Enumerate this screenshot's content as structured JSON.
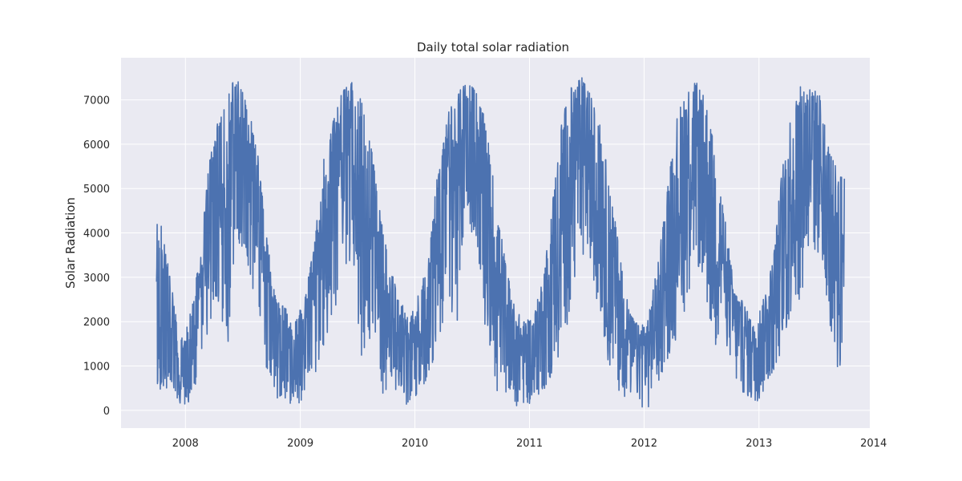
{
  "chart_data": {
    "type": "line",
    "title": "Daily total solar radiation",
    "xlabel": "",
    "ylabel": "Solar Radiation",
    "x_type": "date",
    "xlim": [
      "2007-06-10",
      "2013-12-20"
    ],
    "ylim": [
      -400,
      7950
    ],
    "x_ticks": [
      {
        "label": "2008",
        "date": "2008-01-01"
      },
      {
        "label": "2009",
        "date": "2009-01-01"
      },
      {
        "label": "2010",
        "date": "2010-01-01"
      },
      {
        "label": "2011",
        "date": "2011-01-01"
      },
      {
        "label": "2012",
        "date": "2012-01-01"
      },
      {
        "label": "2013",
        "date": "2013-01-01"
      },
      {
        "label": "2014",
        "date": "2014-01-01"
      }
    ],
    "y_ticks": [
      0,
      1000,
      2000,
      3000,
      4000,
      5000,
      6000,
      7000
    ],
    "grid": true,
    "legend": "none",
    "colors": {
      "background": "#eaeaf2",
      "grid": "#ffffff",
      "line": "#4c72b0"
    },
    "date_range": [
      "2007-10-01",
      "2013-09-30"
    ],
    "series": [
      {
        "values_by_month": [
          {
            "month": "2007-10",
            "lo": 350,
            "hi": 4200
          },
          {
            "month": "2007-11",
            "lo": 300,
            "hi": 3000
          },
          {
            "month": "2007-12",
            "lo": 100,
            "hi": 1500
          },
          {
            "month": "2008-01",
            "lo": 150,
            "hi": 2200
          },
          {
            "month": "2008-02",
            "lo": 900,
            "hi": 3400
          },
          {
            "month": "2008-03",
            "lo": 1500,
            "hi": 5500
          },
          {
            "month": "2008-04",
            "lo": 2300,
            "hi": 6600
          },
          {
            "month": "2008-05",
            "lo": 1400,
            "hi": 7200
          },
          {
            "month": "2008-06",
            "lo": 3800,
            "hi": 7550
          },
          {
            "month": "2008-07",
            "lo": 3300,
            "hi": 7000
          },
          {
            "month": "2008-08",
            "lo": 2300,
            "hi": 6000
          },
          {
            "month": "2008-09",
            "lo": 900,
            "hi": 4000
          },
          {
            "month": "2008-10",
            "lo": 250,
            "hi": 2500
          },
          {
            "month": "2008-11",
            "lo": 200,
            "hi": 2300
          },
          {
            "month": "2008-12",
            "lo": 100,
            "hi": 2000
          },
          {
            "month": "2009-01",
            "lo": 200,
            "hi": 2500
          },
          {
            "month": "2009-02",
            "lo": 800,
            "hi": 3800
          },
          {
            "month": "2009-03",
            "lo": 1300,
            "hi": 5600
          },
          {
            "month": "2009-04",
            "lo": 2000,
            "hi": 6500
          },
          {
            "month": "2009-05",
            "lo": 3000,
            "hi": 7200
          },
          {
            "month": "2009-06",
            "lo": 3300,
            "hi": 7400
          },
          {
            "month": "2009-07",
            "lo": 1200,
            "hi": 7000
          },
          {
            "month": "2009-08",
            "lo": 1600,
            "hi": 6000
          },
          {
            "month": "2009-09",
            "lo": 300,
            "hi": 4300
          },
          {
            "month": "2009-10",
            "lo": 600,
            "hi": 3200
          },
          {
            "month": "2009-11",
            "lo": 200,
            "hi": 2500
          },
          {
            "month": "2009-12",
            "lo": 100,
            "hi": 2000
          },
          {
            "month": "2010-01",
            "lo": 400,
            "hi": 2700
          },
          {
            "month": "2010-02",
            "lo": 800,
            "hi": 3500
          },
          {
            "month": "2010-03",
            "lo": 1500,
            "hi": 5500
          },
          {
            "month": "2010-04",
            "lo": 2200,
            "hi": 6700
          },
          {
            "month": "2010-05",
            "lo": 1900,
            "hi": 7100
          },
          {
            "month": "2010-06",
            "lo": 4500,
            "hi": 7450
          },
          {
            "month": "2010-07",
            "lo": 3600,
            "hi": 7200
          },
          {
            "month": "2010-08",
            "lo": 1700,
            "hi": 6500
          },
          {
            "month": "2010-09",
            "lo": 400,
            "hi": 4800
          },
          {
            "month": "2010-10",
            "lo": 400,
            "hi": 3400
          },
          {
            "month": "2010-11",
            "lo": 100,
            "hi": 2300
          },
          {
            "month": "2010-12",
            "lo": 50,
            "hi": 2000
          },
          {
            "month": "2011-01",
            "lo": 100,
            "hi": 2100
          },
          {
            "month": "2011-02",
            "lo": 400,
            "hi": 3100
          },
          {
            "month": "2011-03",
            "lo": 700,
            "hi": 4700
          },
          {
            "month": "2011-04",
            "lo": 1300,
            "hi": 6600
          },
          {
            "month": "2011-05",
            "lo": 2300,
            "hi": 7300
          },
          {
            "month": "2011-06",
            "lo": 3600,
            "hi": 7530
          },
          {
            "month": "2011-07",
            "lo": 3200,
            "hi": 7100
          },
          {
            "month": "2011-08",
            "lo": 2000,
            "hi": 6400
          },
          {
            "month": "2011-09",
            "lo": 700,
            "hi": 5000
          },
          {
            "month": "2011-10",
            "lo": 400,
            "hi": 3600
          },
          {
            "month": "2011-11",
            "lo": 200,
            "hi": 2200
          },
          {
            "month": "2011-12",
            "lo": 100,
            "hi": 1900
          },
          {
            "month": "2012-01",
            "lo": 0,
            "hi": 2100
          },
          {
            "month": "2012-02",
            "lo": 600,
            "hi": 3400
          },
          {
            "month": "2012-03",
            "lo": 1100,
            "hi": 5000
          },
          {
            "month": "2012-04",
            "lo": 1600,
            "hi": 6600
          },
          {
            "month": "2012-05",
            "lo": 2300,
            "hi": 7300
          },
          {
            "month": "2012-06",
            "lo": 3300,
            "hi": 7400
          },
          {
            "month": "2012-07",
            "lo": 2300,
            "hi": 7000
          },
          {
            "month": "2012-08",
            "lo": 900,
            "hi": 5800
          },
          {
            "month": "2012-09",
            "lo": 1600,
            "hi": 4300
          },
          {
            "month": "2012-10",
            "lo": 500,
            "hi": 2700
          },
          {
            "month": "2012-11",
            "lo": 300,
            "hi": 2400
          },
          {
            "month": "2012-12",
            "lo": 100,
            "hi": 1900
          },
          {
            "month": "2013-01",
            "lo": 300,
            "hi": 2500
          },
          {
            "month": "2013-02",
            "lo": 800,
            "hi": 3400
          },
          {
            "month": "2013-03",
            "lo": 1300,
            "hi": 5400
          },
          {
            "month": "2013-04",
            "lo": 2000,
            "hi": 6800
          },
          {
            "month": "2013-05",
            "lo": 2600,
            "hi": 7330
          },
          {
            "month": "2013-06",
            "lo": 3200,
            "hi": 7300
          },
          {
            "month": "2013-07",
            "lo": 3400,
            "hi": 7100
          },
          {
            "month": "2013-08",
            "lo": 1800,
            "hi": 5800
          },
          {
            "month": "2013-09",
            "lo": 500,
            "hi": 5300
          }
        ]
      }
    ]
  }
}
